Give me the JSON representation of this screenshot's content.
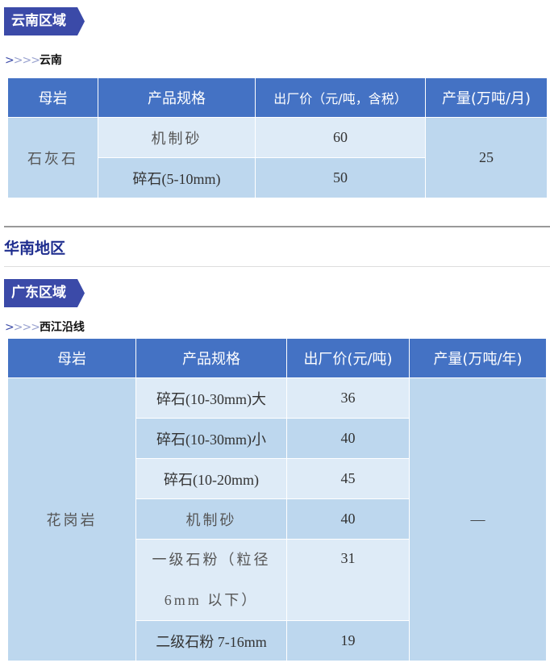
{
  "section1": {
    "tag": "云南区域",
    "sub_arrows": ">>>>",
    "sub_label": "云南",
    "headers": [
      "母岩",
      "产品规格",
      "出厂价（元/吨，含税）",
      "产量(万吨/月)"
    ],
    "rock": "石灰石",
    "output": "25",
    "rows": [
      {
        "spec": "机制砂",
        "price": "60"
      },
      {
        "spec": "碎石(5-10mm)",
        "price": "50"
      }
    ]
  },
  "region": "华南地区",
  "section2": {
    "tag": "广东区域",
    "sub_arrows": ">>>>",
    "sub_label": "西江沿线",
    "headers": [
      "母岩",
      "产品规格",
      "出厂价(元/吨)",
      "产量(万吨/年)"
    ],
    "rock": "花岗岩",
    "output": "—",
    "rows": [
      {
        "spec": "碎石(10-30mm)大",
        "price": "36"
      },
      {
        "spec": "碎石(10-30mm)小",
        "price": "40"
      },
      {
        "spec": "碎石(10-20mm)",
        "price": "45"
      },
      {
        "spec": "机制砂",
        "price": "40"
      },
      {
        "spec": "一级石粉（粒径 6mm 以下）",
        "price": "31"
      },
      {
        "spec": "二级石粉 7-16mm",
        "price": "19"
      }
    ]
  },
  "colors": {
    "header": "#4472c4",
    "tag": "#3b4aa8",
    "row_dark": "#bdd7ee",
    "row_light": "#deebf7",
    "region": "#1f2e8f"
  }
}
